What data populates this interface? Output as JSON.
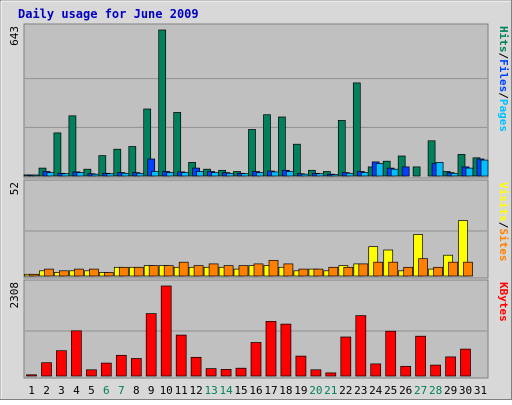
{
  "chart_data": {
    "type": "bar",
    "title": "Daily usage for June 2009",
    "categories": [
      "1",
      "2",
      "3",
      "4",
      "5",
      "6",
      "7",
      "8",
      "9",
      "10",
      "11",
      "12",
      "13",
      "14",
      "15",
      "16",
      "17",
      "18",
      "19",
      "20",
      "21",
      "22",
      "23",
      "24",
      "25",
      "26",
      "27",
      "28",
      "29",
      "30",
      "31"
    ],
    "weekend_days": [
      "6",
      "7",
      "13",
      "14",
      "20",
      "21",
      "27",
      "28"
    ],
    "colors": {
      "title": "#0000c0",
      "background": "#c0c0c0",
      "frame": "#e0e0e0",
      "hits": "#00805c",
      "files": "#0040ff",
      "pages": "#00c0ff",
      "visits": "#ffff00",
      "sites": "#ff8000",
      "kbytes": "#ff0000",
      "weekend_label": "#00805c",
      "day_label": "#000000"
    },
    "panels": [
      {
        "id": "top",
        "ymax_label": "643",
        "ylim": [
          0,
          643
        ],
        "legend": [
          {
            "text": "Pages",
            "color": "#00c0ff"
          },
          {
            "text": "/",
            "color": "#000000"
          },
          {
            "text": "Files",
            "color": "#0040ff"
          },
          {
            "text": "/",
            "color": "#000000"
          },
          {
            "text": "Hits",
            "color": "#00805c"
          }
        ],
        "series": [
          {
            "name": "Hits",
            "color": "#00805c",
            "values": [
              5,
              35,
              190,
              265,
              30,
              90,
              118,
              130,
              295,
              643,
              280,
              60,
              30,
              25,
              20,
              205,
              270,
              260,
              140,
              25,
              20,
              245,
              410,
              40,
              65,
              88,
              40,
              155,
              20,
              95,
              80
            ]
          },
          {
            "name": "Files",
            "color": "#0040ff",
            "values": [
              3,
              20,
              12,
              18,
              10,
              12,
              15,
              15,
              75,
              20,
              18,
              35,
              20,
              15,
              12,
              20,
              22,
              25,
              10,
              12,
              8,
              15,
              20,
              62,
              35,
              40,
              0,
              55,
              15,
              40,
              75
            ]
          },
          {
            "name": "Pages",
            "color": "#00c0ff",
            "values": [
              2,
              15,
              10,
              15,
              8,
              10,
              12,
              12,
              20,
              15,
              15,
              20,
              15,
              12,
              10,
              15,
              18,
              20,
              8,
              10,
              6,
              12,
              15,
              55,
              30,
              0,
              0,
              60,
              12,
              35,
              70
            ]
          }
        ]
      },
      {
        "id": "middle",
        "ymax_label": "52",
        "ylim": [
          0,
          52
        ],
        "legend": [
          {
            "text": "Sites",
            "color": "#ff8000"
          },
          {
            "text": "/",
            "color": "#000000"
          },
          {
            "text": "Visits",
            "color": "#ffff00"
          }
        ],
        "series": [
          {
            "name": "Visits",
            "color": "#ffff00",
            "values": [
              1,
              3,
              2,
              3,
              3,
              2,
              5,
              5,
              6,
              6,
              5,
              5,
              5,
              5,
              4,
              6,
              6,
              5,
              3,
              4,
              3,
              6,
              7,
              17,
              15,
              3,
              24,
              4,
              12,
              32,
              0
            ]
          },
          {
            "name": "Sites",
            "color": "#ff8000",
            "values": [
              1,
              4,
              3,
              4,
              4,
              2,
              5,
              5,
              6,
              6,
              8,
              6,
              7,
              6,
              6,
              7,
              9,
              7,
              4,
              4,
              5,
              5,
              7,
              8,
              8,
              5,
              10,
              5,
              8,
              8,
              0
            ]
          }
        ]
      },
      {
        "id": "bottom",
        "ymax_label": "2308",
        "ylim": [
          0,
          2308
        ],
        "legend": [
          {
            "text": "KBytes",
            "color": "#ff0000"
          }
        ],
        "series": [
          {
            "name": "KBytes",
            "color": "#ff0000",
            "values": [
              30,
              340,
              650,
              1160,
              160,
              330,
              530,
              450,
              1600,
              2308,
              1050,
              480,
              190,
              170,
              200,
              860,
              1400,
              1330,
              510,
              160,
              80,
              1000,
              1550,
              310,
              1150,
              250,
              1020,
              280,
              490,
              690,
              0
            ]
          }
        ]
      }
    ]
  }
}
